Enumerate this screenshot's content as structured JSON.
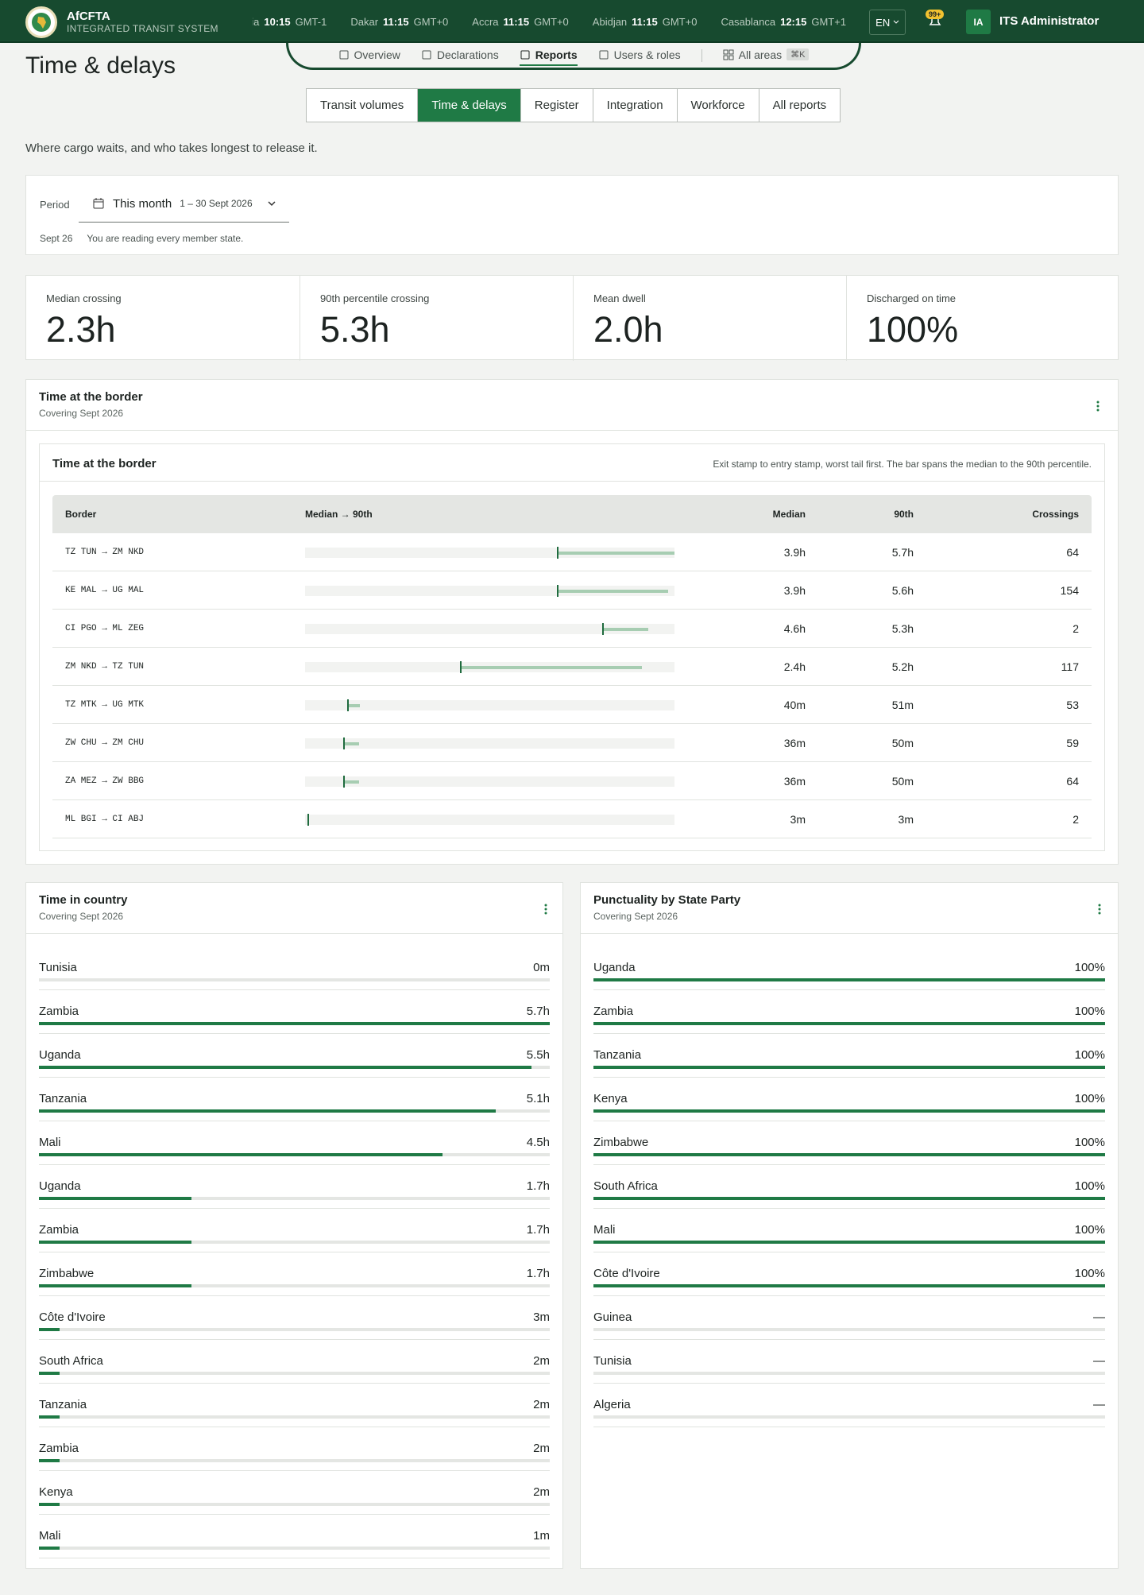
{
  "header": {
    "brand": "AfCFTA",
    "subtitle": "INTEGRATED TRANSIT SYSTEM",
    "clocks": [
      {
        "city": "Praia",
        "time": "10:15",
        "zone": "GMT-1"
      },
      {
        "city": "Dakar",
        "time": "11:15",
        "zone": "GMT+0"
      },
      {
        "city": "Accra",
        "time": "11:15",
        "zone": "GMT+0"
      },
      {
        "city": "Abidjan",
        "time": "11:15",
        "zone": "GMT+0"
      },
      {
        "city": "Casablanca",
        "time": "12:15",
        "zone": "GMT+1"
      }
    ],
    "language": "EN",
    "notifications": "99+",
    "avatar": "IA",
    "user": "ITS Administrator"
  },
  "nav": {
    "items": [
      "Overview",
      "Declarations",
      "Reports",
      "Users & roles"
    ],
    "active": 2,
    "all_areas": "All areas",
    "shortcut": "⌘K"
  },
  "page": {
    "title": "Time & delays",
    "tabs": [
      "Transit volumes",
      "Time & delays",
      "Register",
      "Integration",
      "Workforce",
      "All reports"
    ],
    "active_tab": 1,
    "description": "Where cargo waits, and who takes longest to release it."
  },
  "filter": {
    "label": "Period",
    "value": "This month",
    "range": "1 – 30 Sept 2026",
    "note_date": "Sept 26",
    "note": "You are reading every member state."
  },
  "kpis": [
    {
      "label": "Median crossing",
      "value": "2.3h"
    },
    {
      "label": "90th percentile crossing",
      "value": "5.3h"
    },
    {
      "label": "Mean dwell",
      "value": "2.0h"
    },
    {
      "label": "Discharged on time",
      "value": "100%"
    }
  ],
  "border_panel": {
    "title": "Time at the border",
    "subtitle": "Covering Sept 2026",
    "table_title": "Time at the border",
    "table_note": "Exit stamp to entry stamp, worst tail first. The bar spans the median to the 90th percentile.",
    "columns": [
      "Border",
      "Median → 90th",
      "Median",
      "90th",
      "Crossings"
    ],
    "rows": [
      {
        "border": "TZ TUN → ZM NKD",
        "median": 234,
        "median_label": "3.9h",
        "p90": 342,
        "p90_label": "5.7h",
        "crossings": 64
      },
      {
        "border": "KE MAL → UG MAL",
        "median": 234,
        "median_label": "3.9h",
        "p90": 336,
        "p90_label": "5.6h",
        "crossings": 154
      },
      {
        "border": "CI PGO → ML ZEG",
        "median": 276,
        "median_label": "4.6h",
        "p90": 318,
        "p90_label": "5.3h",
        "crossings": 2
      },
      {
        "border": "ZM NKD → TZ TUN",
        "median": 144,
        "median_label": "2.4h",
        "p90": 312,
        "p90_label": "5.2h",
        "crossings": 117
      },
      {
        "border": "TZ MTK → UG MTK",
        "median": 40,
        "median_label": "40m",
        "p90": 51,
        "p90_label": "51m",
        "crossings": 53
      },
      {
        "border": "ZW CHU → ZM CHU",
        "median": 36,
        "median_label": "36m",
        "p90": 50,
        "p90_label": "50m",
        "crossings": 59
      },
      {
        "border": "ZA MEZ → ZW BBG",
        "median": 36,
        "median_label": "36m",
        "p90": 50,
        "p90_label": "50m",
        "crossings": 64
      },
      {
        "border": "ML BGI → CI ABJ",
        "median": 3,
        "median_label": "3m",
        "p90": 3,
        "p90_label": "3m",
        "crossings": 2
      }
    ]
  },
  "country_panel": {
    "title": "Time in country",
    "subtitle": "Covering Sept 2026",
    "categories": [
      "Tunisia",
      "Zambia",
      "Uganda",
      "Tanzania",
      "Mali",
      "Uganda",
      "Zambia",
      "Zimbabwe",
      "Côte d'Ivoire",
      "South Africa",
      "Tanzania",
      "Zambia",
      "Kenya",
      "Mali"
    ],
    "values": [
      0,
      342,
      330,
      306,
      270,
      102,
      102,
      102,
      3,
      2,
      2,
      2,
      2,
      1
    ],
    "value_labels": [
      "0m",
      "5.7h",
      "5.5h",
      "5.1h",
      "4.5h",
      "1.7h",
      "1.7h",
      "1.7h",
      "3m",
      "2m",
      "2m",
      "2m",
      "2m",
      "1m"
    ],
    "color": "#1f7a45"
  },
  "punctuality_panel": {
    "title": "Punctuality by State Party",
    "subtitle": "Covering Sept 2026",
    "categories": [
      "Uganda",
      "Zambia",
      "Tanzania",
      "Kenya",
      "Zimbabwe",
      "South Africa",
      "Mali",
      "Côte d'Ivoire",
      "Guinea",
      "Tunisia",
      "Algeria"
    ],
    "values": [
      100,
      100,
      100,
      100,
      100,
      100,
      100,
      100,
      null,
      null,
      null
    ],
    "value_labels": [
      "100%",
      "100%",
      "100%",
      "100%",
      "100%",
      "100%",
      "100%",
      "100%",
      "—",
      "—",
      "—"
    ],
    "color": "#1f7a45"
  }
}
